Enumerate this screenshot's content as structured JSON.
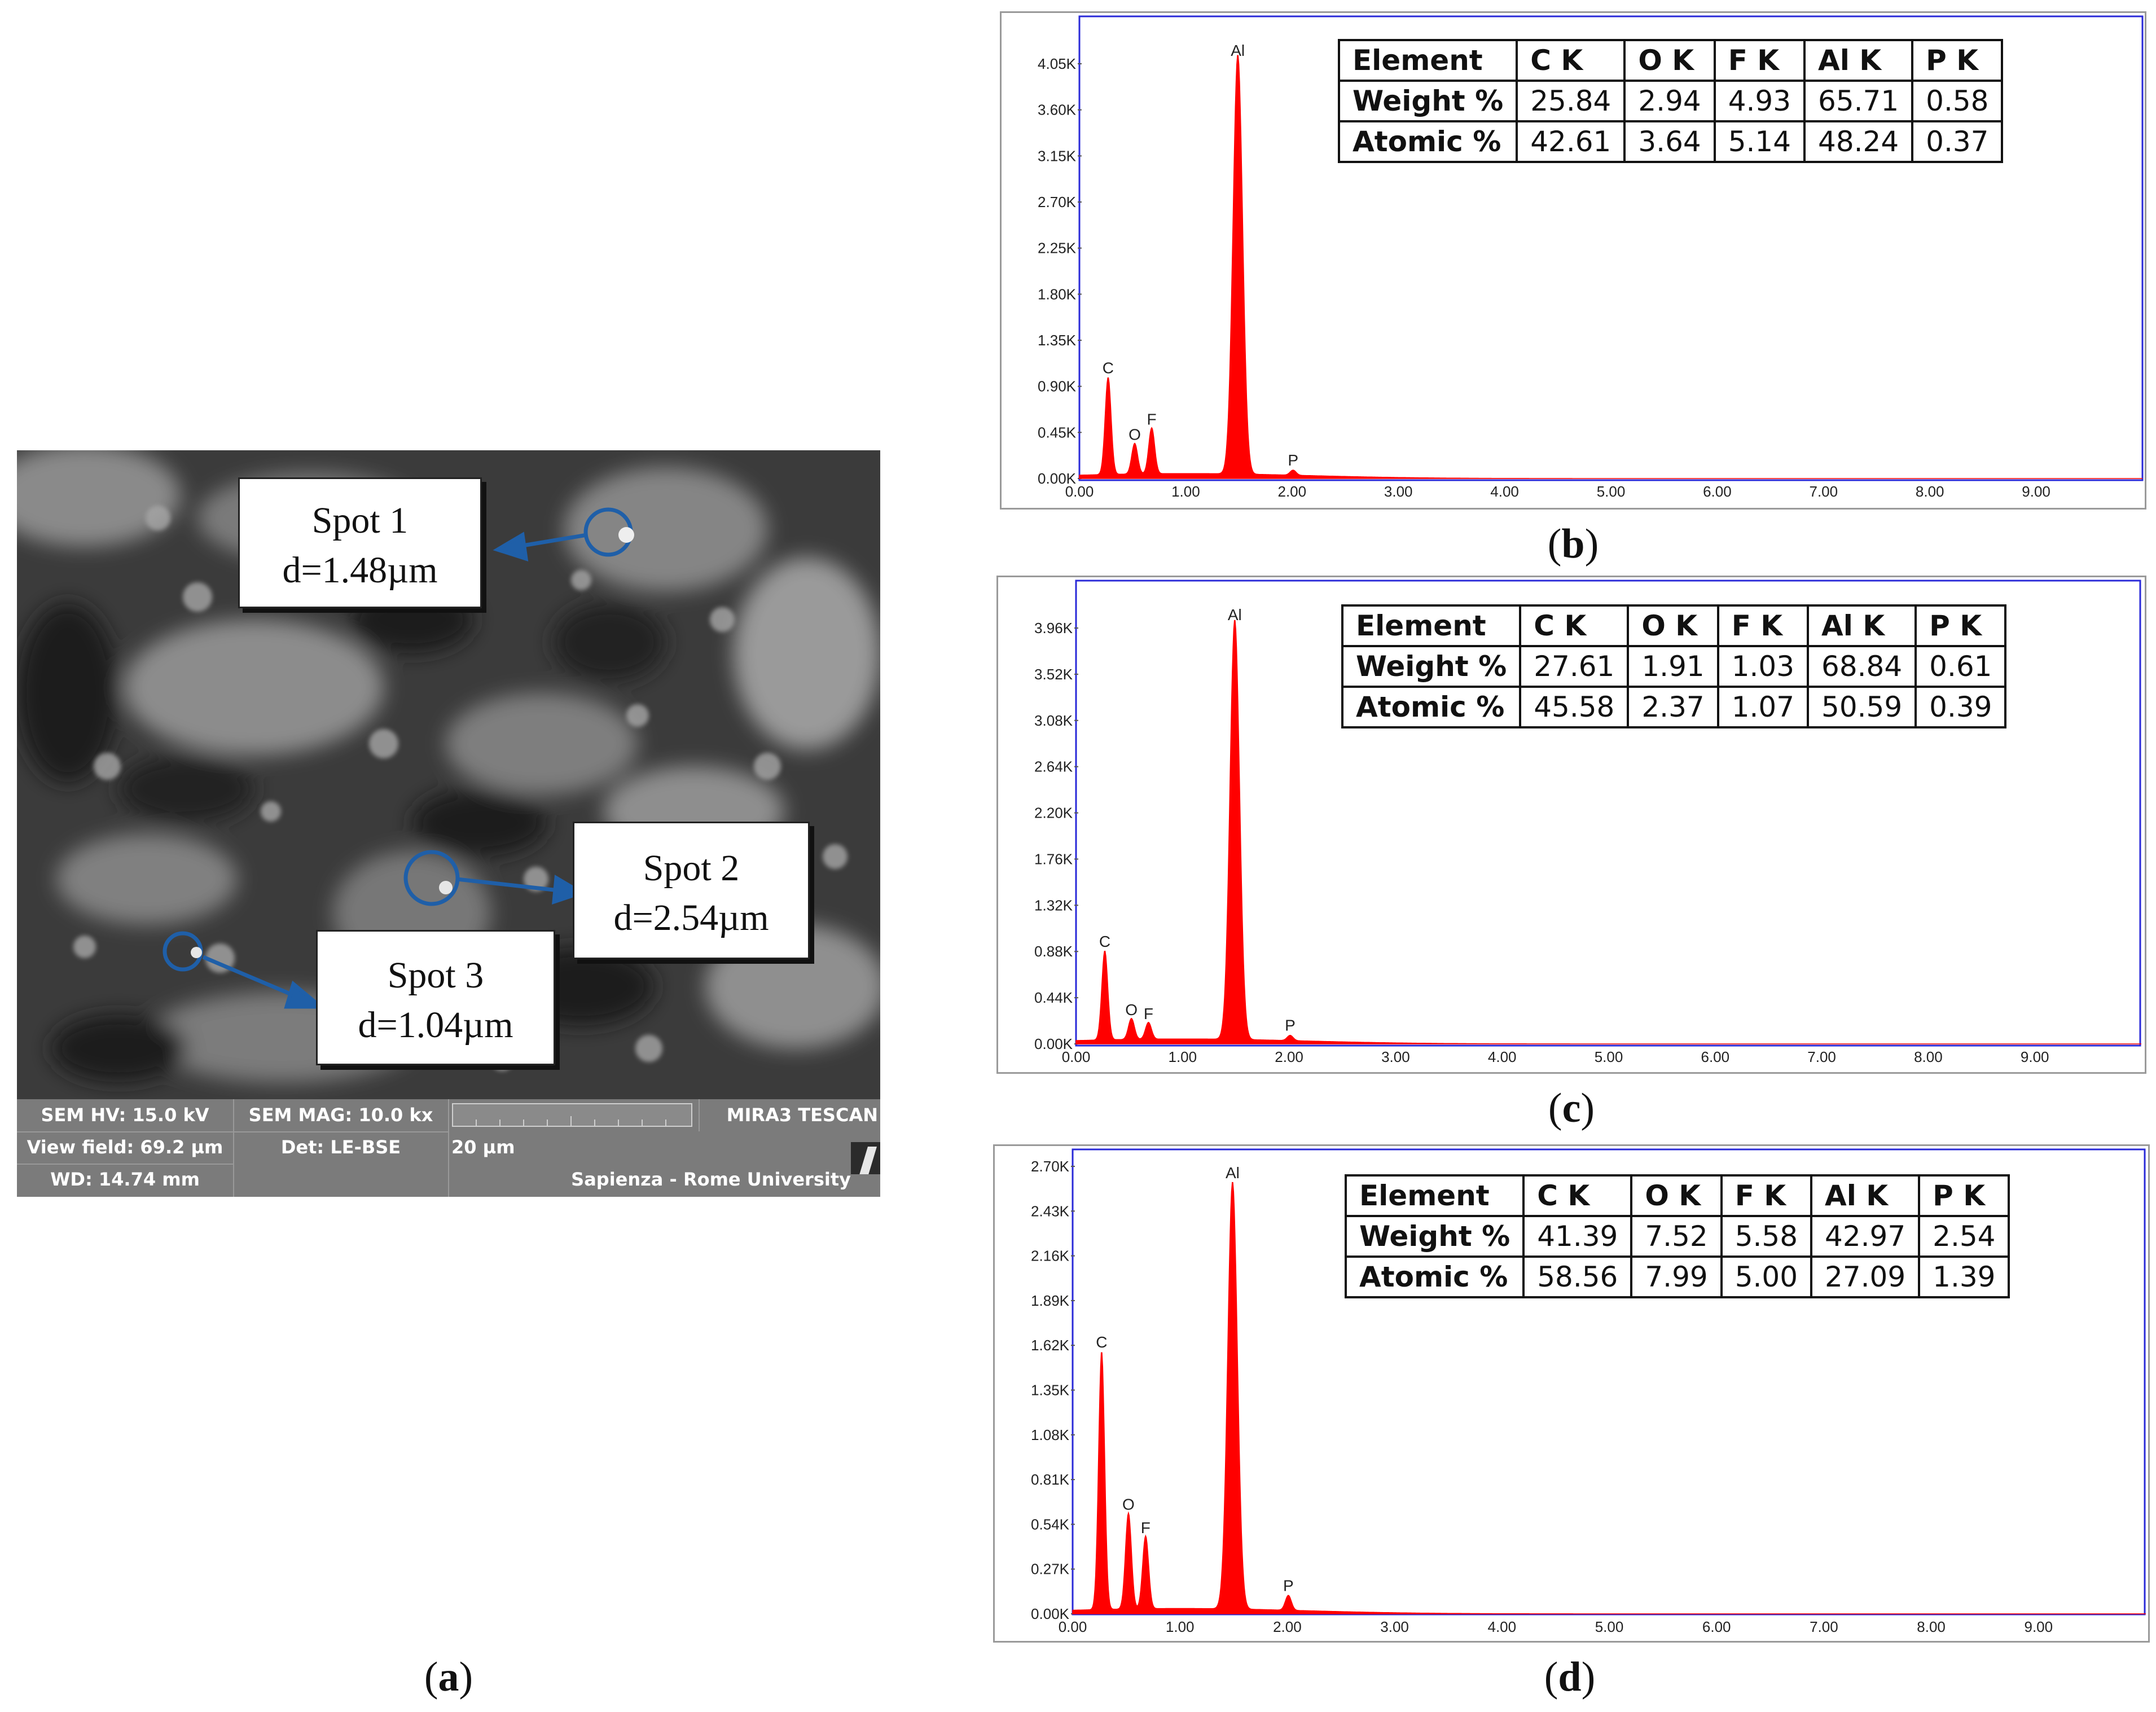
{
  "sem": {
    "callouts": [
      {
        "spot": "Spot 1",
        "d": "d=1.48µm"
      },
      {
        "spot": "Spot 2",
        "d": "d=2.54µm"
      },
      {
        "spot": "Spot 3",
        "d": "d=1.04µm"
      }
    ],
    "info": {
      "hv": "SEM HV: 15.0 kV",
      "mag": "SEM MAG: 10.0 kx",
      "brand": "MIRA3 TESCAN",
      "view_field": "View field: 69.2 µm",
      "det": "Det: LE-BSE",
      "scale": "20 µm",
      "wd": "WD: 14.74 mm",
      "org": "Sapienza - Rome University"
    },
    "label_letter": "a"
  },
  "colors": {
    "spectrum": "#ff0000",
    "frame": "#2a2ad8",
    "marker": "#1f5fa8"
  },
  "chart_data": [
    {
      "type": "area",
      "panel": "b",
      "x_ticks": [
        "0.00",
        "1.00",
        "2.00",
        "3.00",
        "4.00",
        "5.00",
        "6.00",
        "7.00",
        "8.00",
        "9.00"
      ],
      "y_ticks": [
        "0.00K",
        "0.45K",
        "0.90K",
        "1.35K",
        "1.80K",
        "2.25K",
        "2.70K",
        "3.15K",
        "3.60K",
        "4.05K"
      ],
      "xlim": [
        0,
        10
      ],
      "ylim": [
        0,
        4.05
      ],
      "peaks": [
        {
          "label": "C",
          "x": 0.27,
          "y": 0.95
        },
        {
          "label": "O",
          "x": 0.52,
          "y": 0.3
        },
        {
          "label": "F",
          "x": 0.68,
          "y": 0.45
        },
        {
          "label": "Al",
          "x": 1.49,
          "y": 4.1
        },
        {
          "label": "P",
          "x": 2.01,
          "y": 0.05
        }
      ],
      "table": {
        "headers": [
          "Element",
          "C K",
          "O K",
          "F K",
          "Al K",
          "P K"
        ],
        "rows": [
          [
            "Weight %",
            "25.84",
            "2.94",
            "4.93",
            "65.71",
            "0.58"
          ],
          [
            "Atomic %",
            "42.61",
            "3.64",
            "5.14",
            "48.24",
            "0.37"
          ]
        ]
      }
    },
    {
      "type": "area",
      "panel": "c",
      "x_ticks": [
        "0.00",
        "1.00",
        "2.00",
        "3.00",
        "4.00",
        "5.00",
        "6.00",
        "7.00",
        "8.00",
        "9.00"
      ],
      "y_ticks": [
        "0.00K",
        "0.44K",
        "0.88K",
        "1.32K",
        "1.76K",
        "2.20K",
        "2.64K",
        "3.08K",
        "3.52K",
        "3.96K"
      ],
      "xlim": [
        0,
        10
      ],
      "ylim": [
        0,
        3.96
      ],
      "peaks": [
        {
          "label": "C",
          "x": 0.27,
          "y": 0.85
        },
        {
          "label": "O",
          "x": 0.52,
          "y": 0.2
        },
        {
          "label": "F",
          "x": 0.68,
          "y": 0.16
        },
        {
          "label": "Al",
          "x": 1.49,
          "y": 4.0
        },
        {
          "label": "P",
          "x": 2.01,
          "y": 0.05
        }
      ],
      "table": {
        "headers": [
          "Element",
          "C K",
          "O K",
          "F K",
          "Al K",
          "P K"
        ],
        "rows": [
          [
            "Weight %",
            "27.61",
            "1.91",
            "1.03",
            "68.84",
            "0.61"
          ],
          [
            "Atomic %",
            "45.58",
            "2.37",
            "1.07",
            "50.59",
            "0.39"
          ]
        ]
      }
    },
    {
      "type": "area",
      "panel": "d",
      "x_ticks": [
        "0.00",
        "1.00",
        "2.00",
        "3.00",
        "4.00",
        "5.00",
        "6.00",
        "7.00",
        "8.00",
        "9.00"
      ],
      "y_ticks": [
        "0.00K",
        "0.27K",
        "0.54K",
        "0.81K",
        "1.08K",
        "1.35K",
        "1.62K",
        "1.89K",
        "2.16K",
        "2.43K",
        "2.70K"
      ],
      "xlim": [
        0,
        10
      ],
      "ylim": [
        0,
        2.7
      ],
      "peaks": [
        {
          "label": "C",
          "x": 0.27,
          "y": 1.56
        },
        {
          "label": "O",
          "x": 0.52,
          "y": 0.58
        },
        {
          "label": "F",
          "x": 0.68,
          "y": 0.44
        },
        {
          "label": "Al",
          "x": 1.49,
          "y": 2.58
        },
        {
          "label": "P",
          "x": 2.01,
          "y": 0.09
        }
      ],
      "table": {
        "headers": [
          "Element",
          "C K",
          "O K",
          "F K",
          "Al K",
          "P K"
        ],
        "rows": [
          [
            "Weight %",
            "41.39",
            "7.52",
            "5.58",
            "42.97",
            "2.54"
          ],
          [
            "Atomic %",
            "58.56",
            "7.99",
            "5.00",
            "27.09",
            "1.39"
          ]
        ]
      }
    }
  ]
}
